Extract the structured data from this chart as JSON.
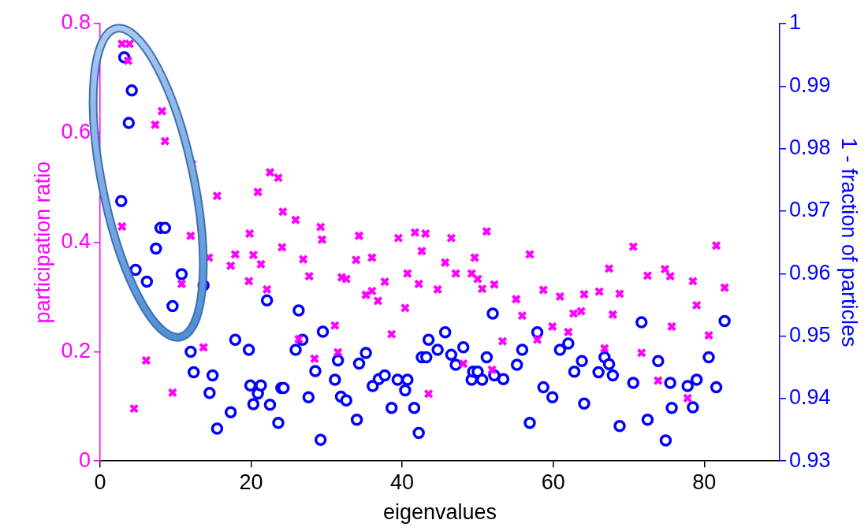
{
  "chart_data": {
    "type": "scatter",
    "xlabel": "eigenvalues",
    "ylabel": "participation ratio",
    "y2label": "1 - fraction of particles",
    "xlim": [
      0,
      90
    ],
    "xticks": [
      0,
      20,
      40,
      60,
      80
    ],
    "ylim": [
      0,
      0.8
    ],
    "yticks": [
      0,
      0.2,
      0.4,
      0.6,
      0.8
    ],
    "y2lim": [
      0.93,
      1
    ],
    "y2ticks": [
      0.93,
      0.94,
      0.95,
      0.96,
      0.97,
      0.98,
      0.99,
      1
    ],
    "grid": false,
    "legend": false,
    "series": [
      {
        "color": "#ff00ff",
        "marker": "cross",
        "x": [
          2.9,
          3.9,
          3.7,
          2.9,
          4.5,
          6.1,
          7.3,
          8.2,
          8.6,
          9.6,
          10.8,
          12.0,
          12.2,
          13.7,
          14.4,
          15.5,
          17.3,
          17.9,
          19.7,
          19.8,
          20.3,
          20.9,
          21.3,
          22.1,
          22.5,
          23.6,
          24.1,
          24.2,
          25.9,
          26.3,
          26.9,
          27.7,
          28.4,
          29.2,
          29.4,
          31.1,
          31.5,
          32.0,
          32.6,
          33.9,
          34.3,
          35.2,
          36.0,
          36.0,
          36.8,
          37.7,
          38.6,
          39.5,
          40.4,
          40.7,
          41.7,
          42.2,
          42.6,
          43.1,
          43.5,
          44.7,
          45.7,
          46.5,
          47.1,
          48.1,
          49.2,
          49.6,
          50.0,
          50.6,
          51.2,
          51.9,
          52.2,
          53.3,
          55.1,
          55.9,
          56.9,
          57.9,
          58.7,
          59.9,
          60.9,
          62.0,
          62.7,
          63.7,
          64.1,
          66.1,
          66.8,
          67.4,
          67.9,
          68.8,
          70.6,
          71.7,
          72.5,
          73.9,
          74.8,
          75.5,
          75.7,
          77.8,
          78.5,
          79.0,
          80.6,
          81.6,
          82.7
        ],
        "values": [
          0.763,
          0.763,
          0.732,
          0.429,
          0.096,
          0.184,
          0.615,
          0.64,
          0.585,
          0.125,
          0.324,
          0.412,
          0.543,
          0.208,
          0.372,
          0.485,
          0.357,
          0.378,
          0.329,
          0.416,
          0.377,
          0.492,
          0.36,
          0.314,
          0.528,
          0.518,
          0.391,
          0.456,
          0.441,
          0.223,
          0.369,
          0.338,
          0.187,
          0.428,
          0.405,
          0.248,
          0.199,
          0.336,
          0.333,
          0.368,
          0.412,
          0.304,
          0.311,
          0.372,
          0.293,
          0.328,
          0.232,
          0.408,
          0.28,
          0.343,
          0.418,
          0.324,
          0.384,
          0.416,
          0.123,
          0.314,
          0.363,
          0.408,
          0.343,
          0.178,
          0.343,
          0.372,
          0.333,
          0.315,
          0.42,
          0.167,
          0.323,
          0.219,
          0.296,
          0.266,
          0.378,
          0.222,
          0.313,
          0.246,
          0.301,
          0.236,
          0.27,
          0.274,
          0.305,
          0.31,
          0.206,
          0.352,
          0.268,
          0.306,
          0.392,
          0.198,
          0.339,
          0.147,
          0.351,
          0.338,
          0.246,
          0.115,
          0.329,
          0.285,
          0.23,
          0.394,
          0.317
        ]
      },
      {
        "color": "#0000ff",
        "marker": "circle",
        "axis": "y2",
        "x": [
          2.8,
          3.2,
          3.8,
          4.2,
          4.7,
          6.2,
          7.4,
          8.0,
          8.6,
          9.6,
          10.8,
          12.0,
          12.4,
          13.7,
          14.5,
          14.9,
          15.5,
          17.3,
          17.9,
          19.7,
          19.9,
          20.3,
          20.9,
          21.3,
          22.1,
          22.5,
          23.6,
          24.0,
          24.3,
          25.9,
          26.3,
          26.8,
          27.6,
          28.5,
          29.2,
          29.5,
          31.1,
          31.5,
          31.9,
          32.6,
          34.0,
          34.3,
          35.2,
          36.1,
          36.9,
          37.7,
          38.6,
          39.4,
          40.4,
          40.7,
          41.6,
          42.2,
          42.6,
          43.2,
          43.5,
          44.7,
          45.7,
          46.5,
          47.1,
          48.1,
          49.2,
          49.4,
          50.0,
          50.6,
          51.2,
          52.0,
          52.2,
          53.4,
          55.2,
          55.9,
          56.9,
          57.9,
          58.7,
          59.9,
          60.9,
          62.0,
          62.8,
          63.8,
          64.1,
          66.0,
          66.8,
          67.4,
          67.9,
          68.8,
          70.6,
          71.7,
          72.5,
          73.9,
          74.9,
          75.5,
          75.7,
          77.8,
          78.5,
          79.0,
          80.6,
          81.6,
          82.7
        ],
        "values": [
          0.9716,
          0.9946,
          0.9841,
          0.9893,
          0.9606,
          0.9587,
          0.964,
          0.9673,
          0.9673,
          0.9548,
          0.9599,
          0.9475,
          0.9442,
          0.9581,
          0.9409,
          0.9437,
          0.9352,
          0.9378,
          0.9494,
          0.9478,
          0.9421,
          0.9391,
          0.9408,
          0.9421,
          0.9557,
          0.939,
          0.9361,
          0.9417,
          0.9417,
          0.9478,
          0.9541,
          0.9494,
          0.9402,
          0.9444,
          0.9334,
          0.9507,
          0.943,
          0.9461,
          0.9403,
          0.9397,
          0.9366,
          0.9456,
          0.9473,
          0.942,
          0.9431,
          0.9437,
          0.9385,
          0.943,
          0.9413,
          0.943,
          0.9385,
          0.9345,
          0.9466,
          0.9466,
          0.9494,
          0.9478,
          0.9506,
          0.947,
          0.9454,
          0.9482,
          0.943,
          0.9443,
          0.9443,
          0.943,
          0.9466,
          0.9536,
          0.9437,
          0.9431,
          0.9454,
          0.9478,
          0.9361,
          0.9506,
          0.9418,
          0.9402,
          0.9478,
          0.9488,
          0.9443,
          0.946,
          0.9392,
          0.9442,
          0.9466,
          0.9455,
          0.9437,
          0.9356,
          0.9425,
          0.9522,
          0.9366,
          0.946,
          0.9333,
          0.9425,
          0.9385,
          0.942,
          0.9386,
          0.943,
          0.9466,
          0.9418,
          0.9524
        ]
      }
    ]
  }
}
